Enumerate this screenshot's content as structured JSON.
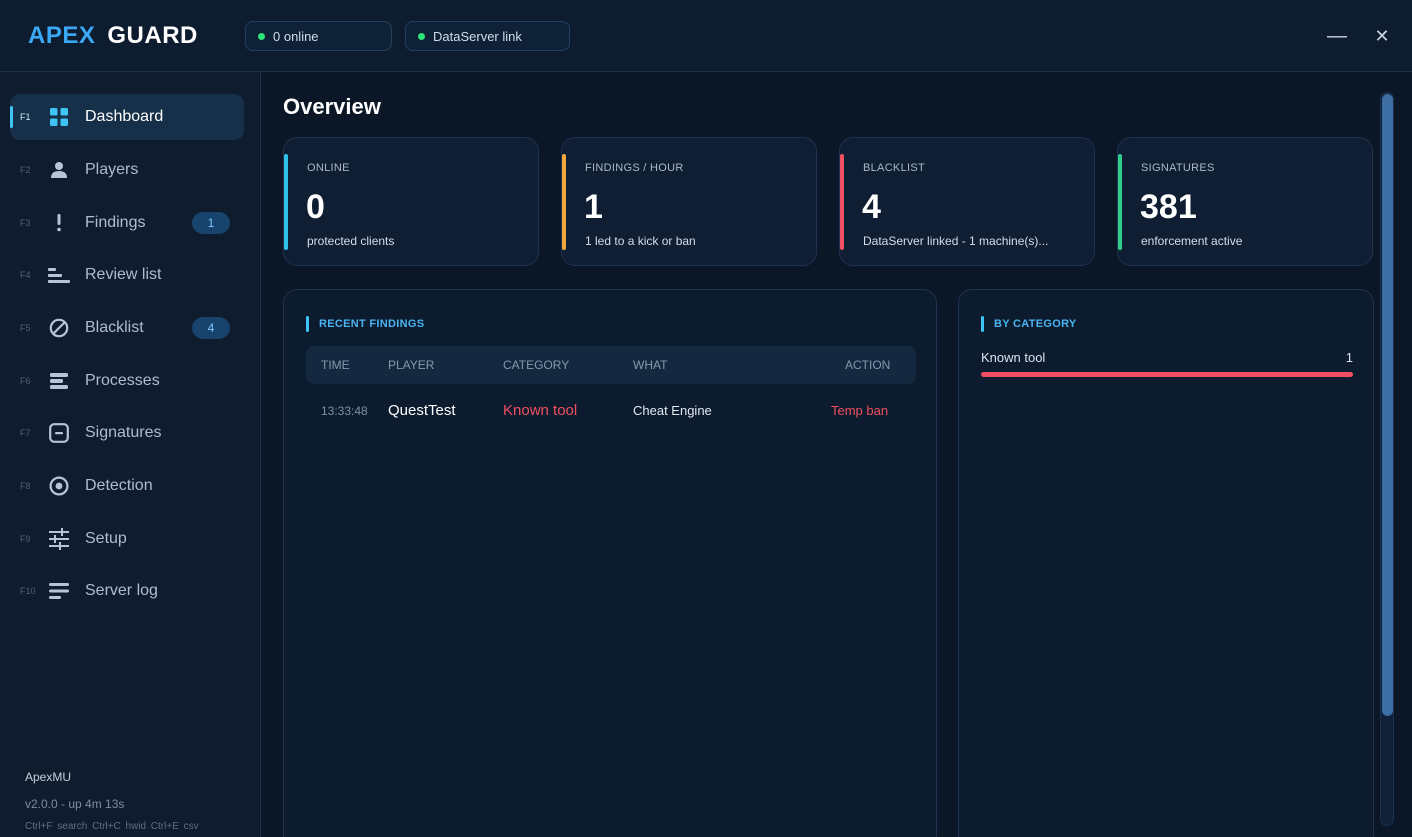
{
  "app": {
    "title_part1": "APEX",
    "title_part2": "GUARD"
  },
  "status_pills": [
    {
      "label": "0 online",
      "color": "#2ee37a"
    },
    {
      "label": "DataServer link",
      "color": "#2ee37a"
    }
  ],
  "window_controls": {
    "minimize": "—",
    "close": "✕"
  },
  "sidebar": {
    "items": [
      {
        "key": "F1",
        "label": "Dashboard",
        "icon": "grid-icon",
        "active": true
      },
      {
        "key": "F2",
        "label": "Players",
        "icon": "user-icon"
      },
      {
        "key": "F3",
        "label": "Findings",
        "icon": "exclamation-icon",
        "badge": "1"
      },
      {
        "key": "F4",
        "label": "Review list",
        "icon": "list-icon"
      },
      {
        "key": "F5",
        "label": "Blacklist",
        "icon": "ban-icon",
        "badge": "4"
      },
      {
        "key": "F6",
        "label": "Processes",
        "icon": "processes-icon"
      },
      {
        "key": "F7",
        "label": "Signatures",
        "icon": "signature-icon"
      },
      {
        "key": "F8",
        "label": "Detection",
        "icon": "target-icon"
      },
      {
        "key": "F9",
        "label": "Setup",
        "icon": "sliders-icon"
      },
      {
        "key": "F10",
        "label": "Server log",
        "icon": "log-icon"
      }
    ],
    "footer": {
      "server": "ApexMU",
      "version": "v2.0.0  -  up 4m 13s",
      "shortcuts": "Ctrl+F search  Ctrl+C hwid  Ctrl+E csv"
    }
  },
  "main": {
    "title": "Overview",
    "stats": [
      {
        "label": "ONLINE",
        "value": "0",
        "sub": "protected clients",
        "color": "#2fc3ea"
      },
      {
        "label": "FINDINGS / HOUR",
        "value": "1",
        "sub": "1 led to a kick or ban",
        "color": "#f1a83a"
      },
      {
        "label": "BLACKLIST",
        "value": "4",
        "sub": "DataServer linked  -  1 machine(s)...",
        "color": "#ef4f63"
      },
      {
        "label": "SIGNATURES",
        "value": "381",
        "sub": "enforcement active",
        "color": "#2fd08a"
      }
    ],
    "recent_findings": {
      "title": "RECENT FINDINGS",
      "columns": [
        "TIME",
        "PLAYER",
        "CATEGORY",
        "WHAT",
        "ACTION"
      ],
      "rows": [
        {
          "time": "13:33:48",
          "player": "QuestTest",
          "category": "Known tool",
          "what": "Cheat Engine",
          "action": "Temp ban"
        }
      ]
    },
    "by_category": {
      "title": "BY CATEGORY",
      "items": [
        {
          "name": "Known tool",
          "count": "1",
          "fraction": 1.0
        }
      ]
    }
  }
}
